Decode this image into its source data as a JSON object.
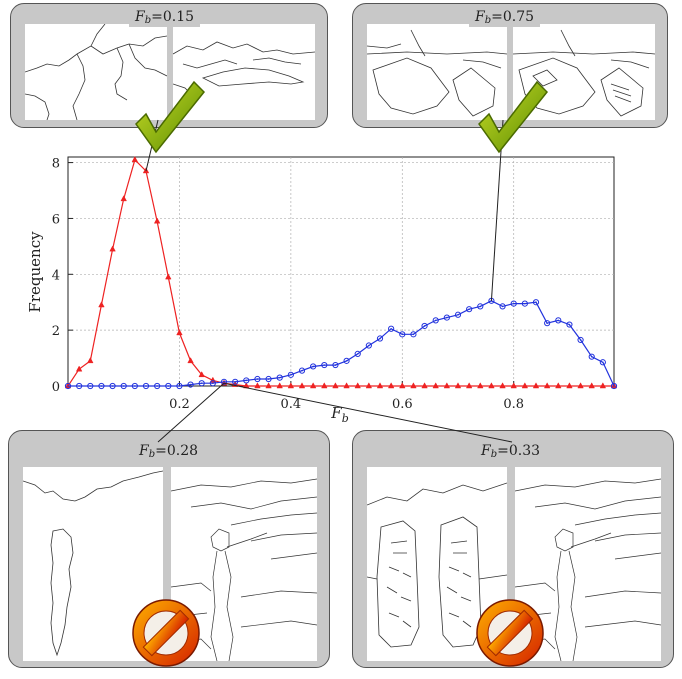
{
  "panels": {
    "top_left": {
      "prefix": "F",
      "sub": "b",
      "value": "=0.15",
      "verdict": "accept"
    },
    "top_right": {
      "prefix": "F",
      "sub": "b",
      "value": "=0.75",
      "verdict": "accept"
    },
    "bottom_left": {
      "prefix": "F",
      "sub": "b",
      "value": "=0.28",
      "verdict": "reject"
    },
    "bottom_right": {
      "prefix": "F",
      "sub": "b",
      "value": "=0.33",
      "verdict": "reject"
    }
  },
  "icons": {
    "accept": "checkmark-icon",
    "reject": "prohibited-icon"
  },
  "colors": {
    "red_series": "#ee2222",
    "blue_series": "#2233dd",
    "check_green": "#8ab400",
    "no_orange": "#e85a00"
  },
  "chart_data": {
    "type": "line",
    "xlabel": "Fb",
    "ylabel": "Frequency",
    "xlim": [
      0,
      0.98
    ],
    "ylim": [
      0,
      8.2
    ],
    "x_ticks": [
      0.2,
      0.4,
      0.6,
      0.8
    ],
    "x_tick_labels": [
      "0.2",
      "0.4",
      "0.6",
      "0.8"
    ],
    "y_ticks": [
      0,
      2,
      4,
      6,
      8
    ],
    "y_tick_labels": [
      "0",
      "2",
      "4",
      "6",
      "8"
    ],
    "grid": true,
    "series": [
      {
        "color": "#ee2222",
        "marker": "triangle",
        "x": [
          0.0,
          0.02,
          0.04,
          0.06,
          0.08,
          0.1,
          0.12,
          0.14,
          0.16,
          0.18,
          0.2,
          0.22,
          0.24,
          0.26,
          0.28,
          0.3,
          0.32,
          0.34,
          0.36,
          0.38,
          0.4,
          0.42,
          0.44,
          0.46,
          0.48,
          0.5,
          0.52,
          0.54,
          0.56,
          0.58,
          0.6,
          0.62,
          0.64,
          0.66,
          0.68,
          0.7,
          0.72,
          0.74,
          0.76,
          0.78,
          0.8,
          0.82,
          0.84,
          0.86,
          0.88,
          0.9,
          0.92,
          0.94,
          0.96,
          0.98
        ],
        "y": [
          0.0,
          0.6,
          0.9,
          2.9,
          4.9,
          6.7,
          8.1,
          7.7,
          5.9,
          3.9,
          1.9,
          0.9,
          0.4,
          0.2,
          0.1,
          0.05,
          0.0,
          0.0,
          0.0,
          0.0,
          0.0,
          0.0,
          0.0,
          0.0,
          0.0,
          0.0,
          0.0,
          0.0,
          0.0,
          0.0,
          0.0,
          0.0,
          0.0,
          0.0,
          0.0,
          0.0,
          0.0,
          0.0,
          0.0,
          0.0,
          0.0,
          0.0,
          0.0,
          0.0,
          0.0,
          0.0,
          0.0,
          0.0,
          0.0,
          0.0
        ]
      },
      {
        "color": "#2233dd",
        "marker": "circle",
        "x": [
          0.0,
          0.02,
          0.04,
          0.06,
          0.08,
          0.1,
          0.12,
          0.14,
          0.16,
          0.18,
          0.2,
          0.22,
          0.24,
          0.26,
          0.28,
          0.3,
          0.32,
          0.34,
          0.36,
          0.38,
          0.4,
          0.42,
          0.44,
          0.46,
          0.48,
          0.5,
          0.52,
          0.54,
          0.56,
          0.58,
          0.6,
          0.62,
          0.64,
          0.66,
          0.68,
          0.7,
          0.72,
          0.74,
          0.76,
          0.78,
          0.8,
          0.82,
          0.84,
          0.86,
          0.88,
          0.9,
          0.92,
          0.94,
          0.96,
          0.98
        ],
        "y": [
          0.0,
          0.0,
          0.0,
          0.0,
          0.0,
          0.0,
          0.0,
          0.0,
          0.0,
          0.0,
          0.0,
          0.05,
          0.1,
          0.1,
          0.15,
          0.15,
          0.2,
          0.25,
          0.25,
          0.3,
          0.4,
          0.55,
          0.7,
          0.75,
          0.75,
          0.9,
          1.15,
          1.45,
          1.7,
          2.05,
          1.85,
          1.85,
          2.15,
          2.35,
          2.45,
          2.55,
          2.75,
          2.85,
          3.05,
          2.85,
          2.95,
          2.95,
          3.0,
          2.25,
          2.35,
          2.2,
          1.65,
          1.05,
          0.85,
          0.0
        ]
      }
    ]
  }
}
